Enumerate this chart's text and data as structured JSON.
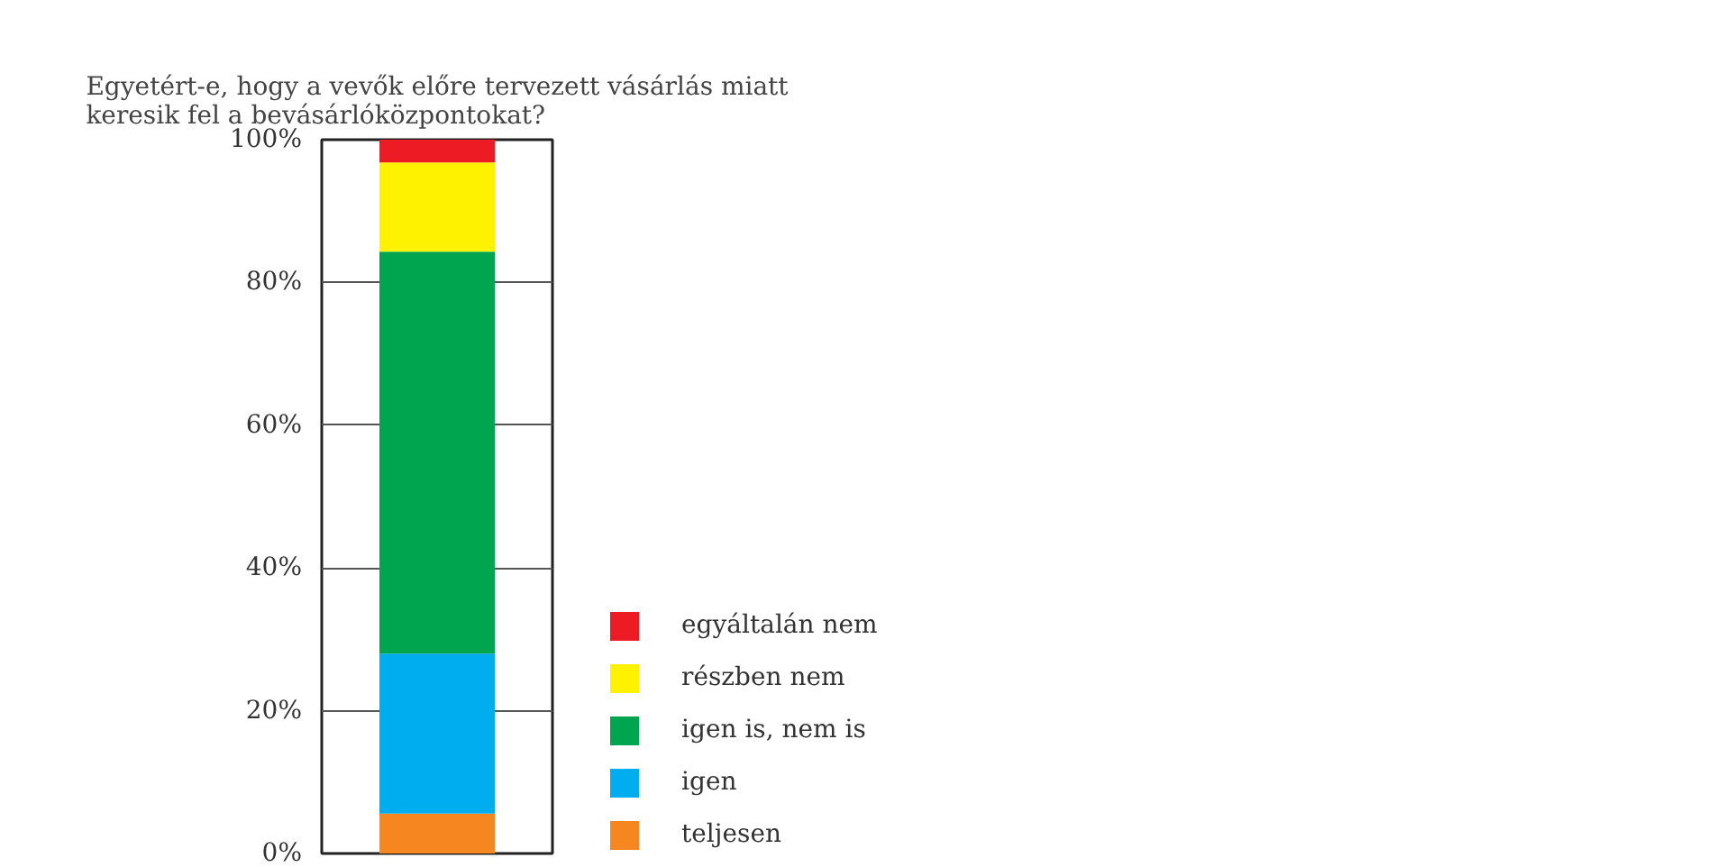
{
  "chart_data": {
    "type": "bar",
    "stacked": true,
    "title": "Egyetért-e, hogy a vevők előre tervezett vásárlás miatt\nkeresik fel a bevásárlóközpontokat?",
    "categories": [
      null
    ],
    "series": [
      {
        "name": "teljesen",
        "color": "#f6861f",
        "values": [
          5.6
        ]
      },
      {
        "name": "igen",
        "color": "#00adef",
        "values": [
          22.4
        ]
      },
      {
        "name": "igen is, nem is",
        "color": "#00a54f",
        "values": [
          56.3
        ]
      },
      {
        "name": "részben nem",
        "color": "#fff200",
        "values": [
          12.5
        ]
      },
      {
        "name": "egyáltalán nem",
        "color": "#ed1c24",
        "values": [
          3.2
        ]
      }
    ],
    "ylim": [
      0,
      100
    ],
    "yticks": [
      {
        "value": 0,
        "label": "0%"
      },
      {
        "value": 20,
        "label": "20%"
      },
      {
        "value": 40,
        "label": "40%"
      },
      {
        "value": 60,
        "label": "60%"
      },
      {
        "value": 80,
        "label": "80%"
      },
      {
        "value": 100,
        "label": "100%"
      }
    ],
    "grid": "y",
    "legend": "right",
    "tick_labels": "y"
  }
}
